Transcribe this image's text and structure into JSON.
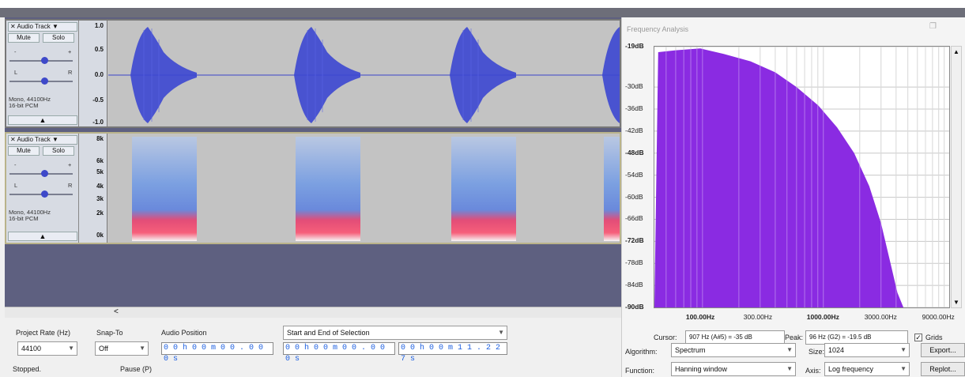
{
  "tracks": [
    {
      "name": "Audio Track",
      "mute": "Mute",
      "solo": "Solo",
      "gain_minus": "-",
      "gain_plus": "+",
      "pan_l": "L",
      "pan_r": "R",
      "info_line1": "Mono, 44100Hz",
      "info_line2": "16-bit PCM",
      "ruler": [
        "1.0",
        "0.5",
        "0.0",
        "-0.5",
        "-1.0"
      ]
    },
    {
      "name": "Audio Track",
      "mute": "Mute",
      "solo": "Solo",
      "gain_minus": "-",
      "gain_plus": "+",
      "pan_l": "L",
      "pan_r": "R",
      "info_line1": "Mono, 44100Hz",
      "info_line2": "16-bit PCM",
      "ruler": [
        "8k",
        "6k",
        "5k",
        "4k",
        "3k",
        "2k",
        "0k"
      ]
    }
  ],
  "selection_toolbar": {
    "project_rate_label": "Project Rate (Hz)",
    "project_rate_value": "44100",
    "snap_to_label": "Snap-To",
    "snap_to_value": "Off",
    "audio_position_label": "Audio Position",
    "audio_position_value": "0 0 h 0 0 m 0 0 . 0 0 0 s",
    "selection_label": "Start and End of Selection",
    "selection_start": "0 0 h 0 0 m 0 0 . 0 0 0 s",
    "selection_end": "0 0 h 0 0 m 1 1 . 2 2 7 s"
  },
  "status_bar": {
    "state": "Stopped.",
    "hint": "Pause (P)"
  },
  "scroll_left_arrow": "<",
  "frequency_analysis": {
    "title": "Frequency Analysis",
    "cursor_label": "Cursor:",
    "cursor_value": "907 Hz (A#5) = -35 dB",
    "peak_label": "Peak:",
    "peak_value": "96 Hz (G2) = -19.5 dB",
    "grids_label": "Grids",
    "algorithm_label": "Algorithm:",
    "algorithm_value": "Spectrum",
    "size_label": "Size:",
    "size_value": "1024",
    "function_label": "Function:",
    "function_value": "Hanning window",
    "axis_label": "Axis:",
    "axis_value": "Log frequency",
    "export_button": "Export...",
    "replot_button": "Replot...",
    "fill_color": "#8a2be2"
  },
  "chart_data": {
    "type": "area",
    "title": "",
    "xlabel": "",
    "ylabel": "",
    "x_scale": "log",
    "x_tick_labels": [
      "100.00Hz",
      "300.00Hz",
      "1000.00Hz",
      "3000.00Hz",
      "9000.00Hz"
    ],
    "y_tick_labels": [
      "-19dB",
      "-30dB",
      "-36dB",
      "-42dB",
      "-48dB",
      "-54dB",
      "-60dB",
      "-66dB",
      "-72dB",
      "-78dB",
      "-84dB",
      "-90dB"
    ],
    "ylim": [
      -90,
      -19
    ],
    "grid": true,
    "series": [
      {
        "values_x_hz": [
          43,
          60,
          96,
          150,
          250,
          400,
          600,
          907,
          1300,
          1800,
          2400,
          3000,
          3600,
          4100,
          4600
        ],
        "values_db": [
          -20.5,
          -20,
          -19.5,
          -21,
          -23,
          -26,
          -30,
          -35,
          -41,
          -48,
          -57,
          -67,
          -78,
          -86,
          -90
        ]
      }
    ]
  }
}
